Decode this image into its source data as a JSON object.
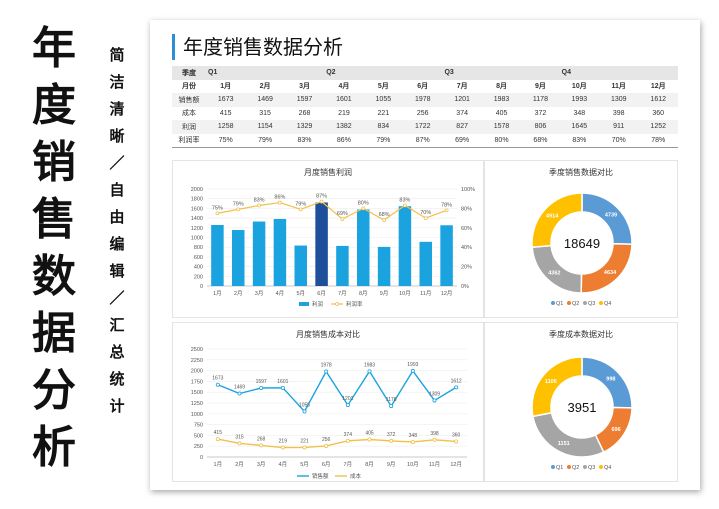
{
  "left_title": [
    "年",
    "度",
    "销",
    "售",
    "数",
    "据",
    "分",
    "析"
  ],
  "left_subtitle": [
    "简",
    "洁",
    "清",
    "晰",
    "／",
    "自",
    "由",
    "编",
    "辑",
    "／",
    "汇",
    "总",
    "统",
    "计"
  ],
  "sheet_title": "年度销售数据分析",
  "table": {
    "quarter_row": [
      "季度",
      "Q1",
      "",
      "",
      "Q2",
      "",
      "",
      "Q3",
      "",
      "",
      "Q4",
      "",
      ""
    ],
    "month_row": [
      "月份",
      "1月",
      "2月",
      "3月",
      "4月",
      "5月",
      "6月",
      "7月",
      "8月",
      "9月",
      "10月",
      "11月",
      "12月"
    ],
    "rows": [
      [
        "销售额",
        "1673",
        "1469",
        "1597",
        "1601",
        "1055",
        "1978",
        "1201",
        "1983",
        "1178",
        "1993",
        "1309",
        "1612"
      ],
      [
        "成本",
        "415",
        "315",
        "268",
        "219",
        "221",
        "256",
        "374",
        "405",
        "372",
        "348",
        "398",
        "360"
      ],
      [
        "利润",
        "1258",
        "1154",
        "1329",
        "1382",
        "834",
        "1722",
        "827",
        "1578",
        "806",
        "1645",
        "911",
        "1252"
      ],
      [
        "利润率",
        "75%",
        "79%",
        "83%",
        "86%",
        "79%",
        "87%",
        "69%",
        "80%",
        "68%",
        "83%",
        "70%",
        "78%"
      ]
    ]
  },
  "chart_data": [
    {
      "type": "bar",
      "title": "月度销售利润",
      "categories": [
        "1月",
        "2月",
        "3月",
        "4月",
        "5月",
        "6月",
        "7月",
        "8月",
        "9月",
        "10月",
        "11月",
        "12月"
      ],
      "series": [
        {
          "name": "利润",
          "values": [
            1258,
            1154,
            1329,
            1382,
            834,
            1722,
            827,
            1578,
            806,
            1645,
            911,
            1252
          ]
        },
        {
          "name": "利润率",
          "values": [
            75,
            79,
            83,
            86,
            79,
            87,
            69,
            80,
            68,
            83,
            70,
            78
          ],
          "labels": [
            "75%",
            "79%",
            "83%",
            "86%",
            "79%",
            "87%",
            "69%",
            "80%",
            "68%",
            "83%",
            "70%",
            "78%"
          ]
        }
      ],
      "ylim": [
        0,
        2000
      ],
      "yticks": [
        "0",
        "200",
        "400",
        "600",
        "800",
        "1000",
        "1200",
        "1400",
        "1600",
        "1800",
        "2000"
      ],
      "y2lim": [
        0,
        100
      ],
      "y2ticks": [
        "0%",
        "20%",
        "40%",
        "60%",
        "80%",
        "100%"
      ],
      "legend_position": "bottom",
      "colors": {
        "bar": "#1ba3e0",
        "highlight": "#1f4e9a",
        "line": "#f2c04a"
      }
    },
    {
      "type": "pie",
      "title": "季度销售数据对比",
      "center_label": "18649",
      "categories": [
        "Q1",
        "Q2",
        "Q3",
        "Q4"
      ],
      "values": [
        4739,
        4634,
        4362,
        4914
      ],
      "colors": [
        "#5b9bd5",
        "#ed7d31",
        "#a5a5a5",
        "#ffc000"
      ],
      "legend_position": "bottom"
    },
    {
      "type": "line",
      "title": "月度销售成本对比",
      "categories": [
        "1月",
        "2月",
        "3月",
        "4月",
        "5月",
        "6月",
        "7月",
        "8月",
        "9月",
        "10月",
        "11月",
        "12月"
      ],
      "series": [
        {
          "name": "销售额",
          "values": [
            1673,
            1469,
            1597,
            1601,
            1055,
            1978,
            1201,
            1983,
            1178,
            1993,
            1309,
            1612
          ]
        },
        {
          "name": "成本",
          "values": [
            415,
            315,
            268,
            219,
            221,
            256,
            374,
            405,
            372,
            348,
            398,
            360
          ]
        }
      ],
      "ylim": [
        0,
        2500
      ],
      "yticks": [
        "0",
        "250",
        "500",
        "750",
        "1000",
        "1250",
        "1500",
        "1750",
        "2000",
        "2250",
        "2500"
      ],
      "legend_position": "bottom",
      "colors": {
        "sales": "#1ba3e0",
        "cost": "#f2c04a"
      }
    },
    {
      "type": "pie",
      "title": "季度成本数据对比",
      "center_label": "3951",
      "categories": [
        "Q1",
        "Q2",
        "Q3",
        "Q4"
      ],
      "values": [
        998,
        696,
        1151,
        1106
      ],
      "colors": [
        "#5b9bd5",
        "#ed7d31",
        "#a5a5a5",
        "#ffc000"
      ],
      "legend_position": "bottom"
    }
  ]
}
